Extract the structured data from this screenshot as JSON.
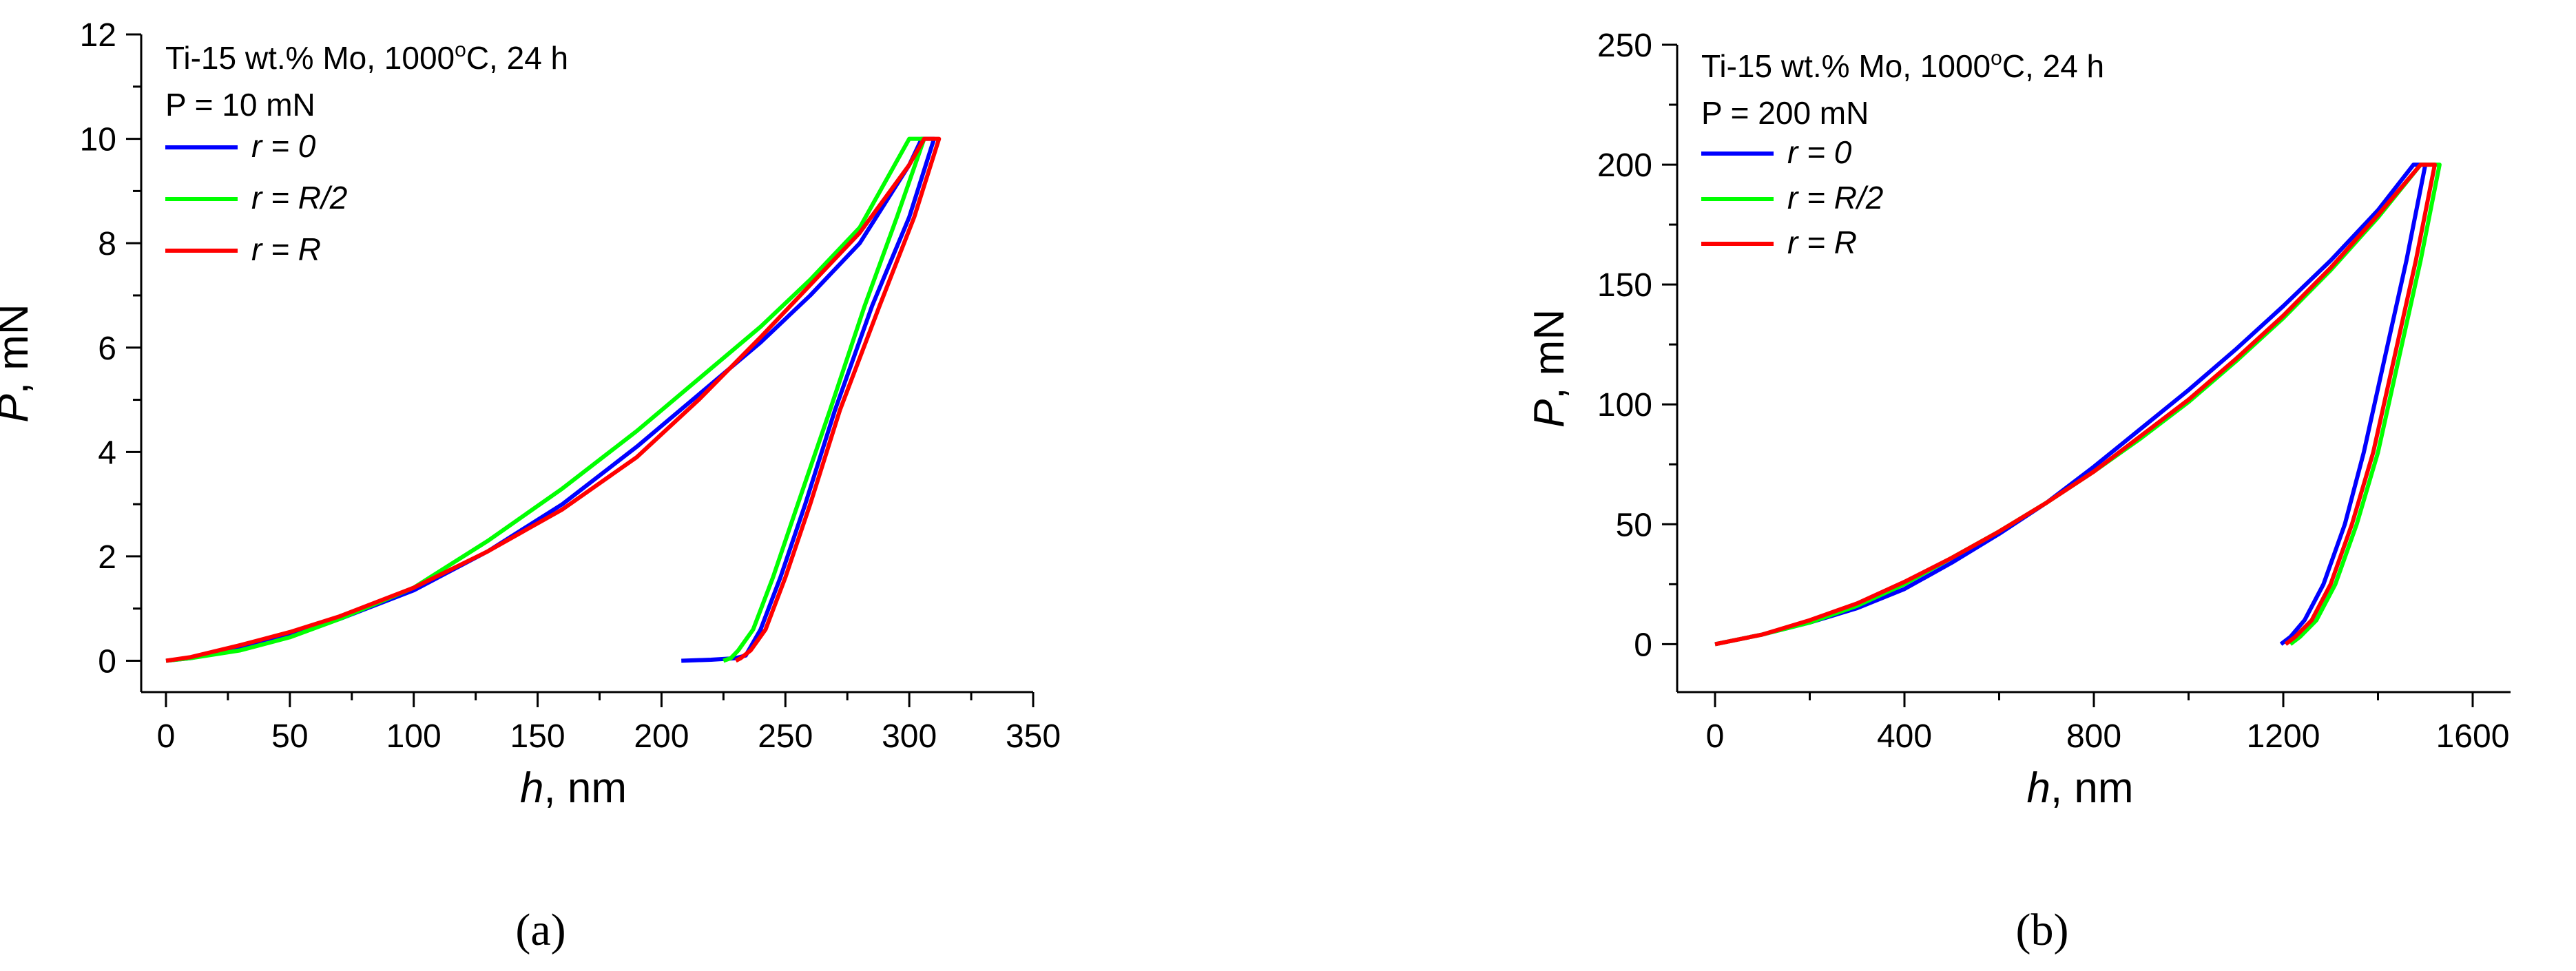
{
  "figure": {
    "panels": [
      "(a)",
      "(b)"
    ]
  },
  "chart_data": [
    {
      "type": "line",
      "panel_label": "(a)",
      "xlabel": "h, nm",
      "ylabel": "P, mN",
      "xlim": [
        -10,
        350
      ],
      "ylim": [
        -0.6,
        12
      ],
      "xticks": [
        "0",
        "50",
        "100",
        "150",
        "200",
        "250",
        "300",
        "350"
      ],
      "yticks": [
        "0",
        "2",
        "4",
        "6",
        "8",
        "10",
        "12"
      ],
      "annotation": [
        "Ti-15 wt.% Mo, 1000°C, 24 h",
        "P = 10 mN"
      ],
      "legend_position": "top-left",
      "grid": false,
      "series": [
        {
          "name": "r = 0",
          "color": "#0000ff",
          "load": [
            [
              0,
              0
            ],
            [
              10,
              0.05
            ],
            [
              30,
              0.25
            ],
            [
              50,
              0.5
            ],
            [
              70,
              0.8
            ],
            [
              100,
              1.35
            ],
            [
              130,
              2.1
            ],
            [
              160,
              3.0
            ],
            [
              190,
              4.1
            ],
            [
              215,
              5.1
            ],
            [
              240,
              6.1
            ],
            [
              260,
              7.0
            ],
            [
              280,
              8.0
            ],
            [
              300,
              9.5
            ],
            [
              305,
              10.0
            ]
          ],
          "hold": [
            [
              305,
              10.0
            ],
            [
              310,
              10.0
            ]
          ],
          "unload": [
            [
              310,
              10.0
            ],
            [
              300,
              8.5
            ],
            [
              285,
              6.8
            ],
            [
              270,
              4.8
            ],
            [
              258,
              3.0
            ],
            [
              248,
              1.6
            ],
            [
              240,
              0.6
            ],
            [
              234,
              0.1
            ],
            [
              230,
              0.05
            ],
            [
              220,
              0.02
            ],
            [
              208,
              0.0
            ]
          ]
        },
        {
          "name": "r = R/2",
          "color": "#00ff00",
          "load": [
            [
              0,
              0
            ],
            [
              10,
              0.05
            ],
            [
              30,
              0.2
            ],
            [
              50,
              0.45
            ],
            [
              70,
              0.8
            ],
            [
              100,
              1.4
            ],
            [
              130,
              2.3
            ],
            [
              160,
              3.3
            ],
            [
              190,
              4.4
            ],
            [
              215,
              5.4
            ],
            [
              240,
              6.4
            ],
            [
              260,
              7.3
            ],
            [
              280,
              8.3
            ],
            [
              300,
              10.0
            ]
          ],
          "hold": [
            [
              300,
              10.0
            ],
            [
              306,
              10.0
            ]
          ],
          "unload": [
            [
              306,
              10.0
            ],
            [
              295,
              8.5
            ],
            [
              282,
              6.8
            ],
            [
              268,
              4.8
            ],
            [
              255,
              3.0
            ],
            [
              245,
              1.6
            ],
            [
              237,
              0.6
            ],
            [
              231,
              0.2
            ],
            [
              228,
              0.05
            ],
            [
              225,
              0.0
            ]
          ]
        },
        {
          "name": "r = R",
          "color": "#ff0000",
          "load": [
            [
              0,
              0
            ],
            [
              10,
              0.07
            ],
            [
              30,
              0.3
            ],
            [
              50,
              0.55
            ],
            [
              70,
              0.85
            ],
            [
              100,
              1.4
            ],
            [
              130,
              2.1
            ],
            [
              160,
              2.9
            ],
            [
              190,
              3.9
            ],
            [
              215,
              5.0
            ],
            [
              240,
              6.2
            ],
            [
              260,
              7.2
            ],
            [
              280,
              8.2
            ],
            [
              300,
              9.5
            ],
            [
              306,
              10.0
            ]
          ],
          "hold": [
            [
              306,
              10.0
            ],
            [
              312,
              10.0
            ]
          ],
          "unload": [
            [
              312,
              10.0
            ],
            [
              302,
              8.5
            ],
            [
              288,
              6.8
            ],
            [
              272,
              4.8
            ],
            [
              260,
              3.0
            ],
            [
              250,
              1.6
            ],
            [
              242,
              0.6
            ],
            [
              236,
              0.2
            ],
            [
              232,
              0.05
            ],
            [
              230,
              0.0
            ]
          ]
        }
      ]
    },
    {
      "type": "line",
      "panel_label": "(b)",
      "xlabel": "h, nm",
      "ylabel": "P, mN",
      "xlim": [
        -80,
        1680
      ],
      "ylim": [
        -20,
        250
      ],
      "xticks": [
        "0",
        "400",
        "800",
        "1200",
        "1600"
      ],
      "yticks": [
        "0",
        "50",
        "100",
        "150",
        "200",
        "250"
      ],
      "annotation": [
        "Ti-15 wt.% Mo, 1000°C, 24 h",
        "P = 200 mN"
      ],
      "legend_position": "top-left",
      "grid": false,
      "series": [
        {
          "name": "r = 0",
          "color": "#0000ff",
          "load": [
            [
              0,
              0
            ],
            [
              100,
              4
            ],
            [
              200,
              9
            ],
            [
              300,
              15
            ],
            [
              400,
              23
            ],
            [
              500,
              34
            ],
            [
              600,
              46
            ],
            [
              700,
              59
            ],
            [
              800,
              74
            ],
            [
              900,
              90
            ],
            [
              1000,
              106
            ],
            [
              1100,
              123
            ],
            [
              1200,
              141
            ],
            [
              1300,
              160
            ],
            [
              1400,
              181
            ],
            [
              1475,
              200
            ]
          ],
          "hold": [
            [
              1475,
              200
            ],
            [
              1500,
              200
            ]
          ],
          "unload": [
            [
              1500,
              200
            ],
            [
              1460,
              160
            ],
            [
              1415,
              120
            ],
            [
              1370,
              80
            ],
            [
              1330,
              50
            ],
            [
              1285,
              25
            ],
            [
              1245,
              10
            ],
            [
              1215,
              3
            ],
            [
              1195,
              0
            ]
          ]
        },
        {
          "name": "r = R/2",
          "color": "#00ff00",
          "load": [
            [
              0,
              0
            ],
            [
              100,
              4
            ],
            [
              200,
              9
            ],
            [
              300,
              16
            ],
            [
              400,
              25
            ],
            [
              500,
              36
            ],
            [
              600,
              47
            ],
            [
              700,
              59
            ],
            [
              800,
              72
            ],
            [
              900,
              86
            ],
            [
              1000,
              101
            ],
            [
              1100,
              118
            ],
            [
              1200,
              136
            ],
            [
              1300,
              156
            ],
            [
              1400,
              178
            ],
            [
              1490,
              200
            ]
          ],
          "hold": [
            [
              1490,
              200
            ],
            [
              1530,
              200
            ]
          ],
          "unload": [
            [
              1530,
              200
            ],
            [
              1490,
              160
            ],
            [
              1445,
              120
            ],
            [
              1400,
              80
            ],
            [
              1355,
              50
            ],
            [
              1310,
              25
            ],
            [
              1270,
              10
            ],
            [
              1235,
              3
            ],
            [
              1215,
              0
            ]
          ]
        },
        {
          "name": "r = R",
          "color": "#ff0000",
          "load": [
            [
              0,
              0
            ],
            [
              100,
              4
            ],
            [
              200,
              10
            ],
            [
              300,
              17
            ],
            [
              400,
              26
            ],
            [
              500,
              36
            ],
            [
              600,
              47
            ],
            [
              700,
              59
            ],
            [
              800,
              72
            ],
            [
              900,
              87
            ],
            [
              1000,
              102
            ],
            [
              1100,
              119
            ],
            [
              1200,
              137
            ],
            [
              1300,
              157
            ],
            [
              1400,
              179
            ],
            [
              1490,
              200
            ]
          ],
          "hold": [
            [
              1490,
              200
            ],
            [
              1520,
              200
            ]
          ],
          "unload": [
            [
              1520,
              200
            ],
            [
              1480,
              160
            ],
            [
              1435,
              120
            ],
            [
              1390,
              80
            ],
            [
              1345,
              50
            ],
            [
              1300,
              25
            ],
            [
              1260,
              10
            ],
            [
              1225,
              3
            ],
            [
              1205,
              0
            ]
          ]
        }
      ]
    }
  ]
}
